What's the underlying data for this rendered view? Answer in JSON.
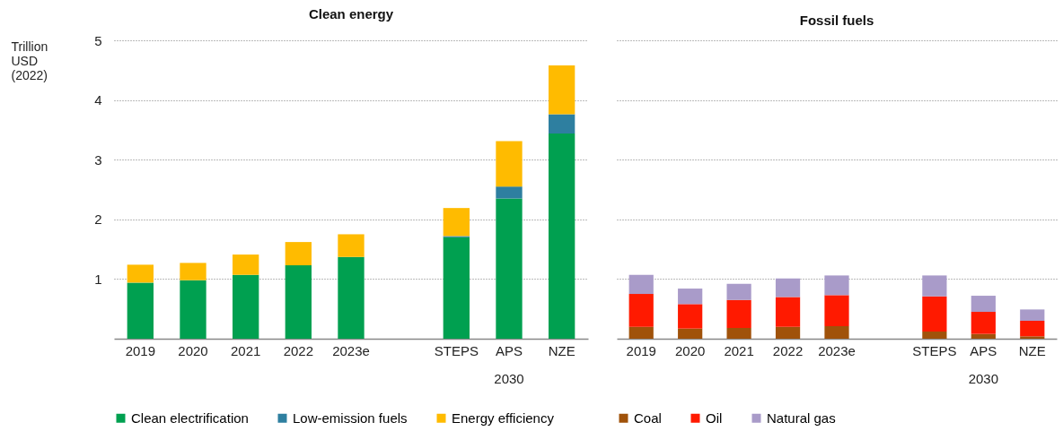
{
  "chart_data": [
    {
      "type": "bar",
      "title": "Clean energy",
      "ylabel": "Trillion USD (2022)",
      "stacked": true,
      "categories": [
        "2019",
        "2020",
        "2021",
        "2022",
        "2023e",
        null,
        "STEPS",
        "APS",
        "NZE"
      ],
      "series": [
        {
          "name": "Clean electrification",
          "color": "#00a050",
          "values": [
            0.94,
            0.98,
            1.07,
            1.23,
            1.37,
            null,
            1.7,
            2.35,
            3.44
          ]
        },
        {
          "name": "Low-emission fuels",
          "color": "#2e7fa0",
          "values": [
            0,
            0,
            0,
            0,
            0,
            null,
            0.02,
            0.2,
            0.32
          ]
        },
        {
          "name": "Energy efficiency",
          "color": "#ffbb00",
          "values": [
            0.3,
            0.29,
            0.34,
            0.39,
            0.38,
            null,
            0.47,
            0.76,
            0.82
          ]
        }
      ],
      "ylim": [
        0,
        5
      ],
      "yticks": [
        1,
        2,
        3,
        4,
        5
      ],
      "grid": "y",
      "legend": "bottom",
      "annotations": [
        "2030"
      ]
    },
    {
      "type": "bar",
      "title": "Fossil fuels",
      "stacked": true,
      "categories": [
        "2019",
        "2020",
        "2021",
        "2022",
        "2023e",
        null,
        "STEPS",
        "APS",
        "NZE"
      ],
      "series": [
        {
          "name": "Coal",
          "color": "#a0520a",
          "values": [
            0.2,
            0.17,
            0.18,
            0.2,
            0.21,
            null,
            0.12,
            0.08,
            0.04
          ]
        },
        {
          "name": "Oil",
          "color": "#ff1a00",
          "values": [
            0.55,
            0.41,
            0.47,
            0.5,
            0.52,
            null,
            0.59,
            0.37,
            0.26
          ]
        },
        {
          "name": "Natural gas",
          "color": "#a99bc9",
          "values": [
            0.32,
            0.26,
            0.27,
            0.31,
            0.33,
            null,
            0.35,
            0.27,
            0.19
          ]
        }
      ],
      "ylim": [
        0,
        5
      ],
      "yticks": [
        1,
        2,
        3,
        4,
        5
      ],
      "grid": "y",
      "tick_labels": "x",
      "legend": "bottom",
      "annotations": [
        "2030"
      ]
    }
  ]
}
